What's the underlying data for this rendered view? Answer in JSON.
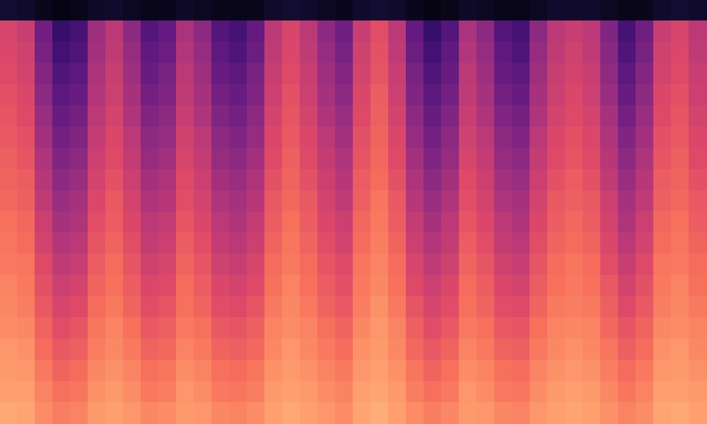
{
  "chart_data": {
    "type": "heatmap",
    "color": "magma",
    "zlim": [
      0,
      100
    ],
    "tick_labels": false,
    "cells": [
      [
        9,
        8,
        5,
        3,
        4,
        7,
        8,
        6,
        4,
        5,
        7,
        6,
        4,
        4,
        5,
        8,
        9,
        8,
        6,
        5,
        8,
        9,
        8,
        5,
        3,
        4,
        7,
        6,
        4,
        4,
        6,
        8,
        8,
        8,
        6,
        4,
        5,
        8,
        9,
        8
      ],
      [
        58,
        54,
        33,
        19,
        23,
        44,
        51,
        40,
        26,
        30,
        47,
        40,
        26,
        23,
        30,
        51,
        58,
        51,
        40,
        33,
        54,
        61,
        51,
        30,
        19,
        26,
        47,
        40,
        26,
        23,
        40,
        51,
        54,
        51,
        37,
        23,
        33,
        54,
        58,
        51
      ],
      [
        59,
        56,
        35,
        22,
        25,
        45,
        52,
        42,
        29,
        32,
        49,
        42,
        29,
        25,
        32,
        52,
        59,
        52,
        42,
        35,
        56,
        62,
        52,
        32,
        22,
        29,
        49,
        42,
        29,
        25,
        42,
        52,
        56,
        52,
        39,
        25,
        35,
        56,
        59,
        52
      ],
      [
        60,
        57,
        38,
        25,
        28,
        47,
        54,
        44,
        31,
        35,
        51,
        44,
        31,
        28,
        35,
        54,
        60,
        54,
        44,
        38,
        57,
        63,
        54,
        35,
        25,
        31,
        51,
        44,
        31,
        28,
        44,
        54,
        57,
        54,
        41,
        28,
        38,
        57,
        60,
        54
      ],
      [
        62,
        59,
        40,
        28,
        31,
        49,
        55,
        46,
        34,
        37,
        52,
        46,
        34,
        31,
        37,
        55,
        62,
        55,
        46,
        40,
        59,
        65,
        55,
        37,
        28,
        34,
        52,
        46,
        34,
        31,
        46,
        55,
        59,
        55,
        43,
        31,
        40,
        59,
        62,
        55
      ],
      [
        63,
        60,
        43,
        31,
        34,
        51,
        57,
        48,
        37,
        40,
        54,
        48,
        37,
        34,
        40,
        57,
        63,
        57,
        48,
        43,
        60,
        66,
        57,
        40,
        31,
        37,
        54,
        48,
        37,
        34,
        48,
        57,
        60,
        57,
        46,
        34,
        43,
        60,
        63,
        57
      ],
      [
        64,
        62,
        45,
        34,
        37,
        53,
        59,
        51,
        40,
        42,
        56,
        51,
        40,
        37,
        42,
        59,
        64,
        59,
        51,
        45,
        62,
        67,
        59,
        42,
        34,
        40,
        56,
        51,
        40,
        37,
        51,
        59,
        62,
        59,
        48,
        37,
        45,
        62,
        64,
        59
      ],
      [
        66,
        63,
        48,
        37,
        40,
        55,
        60,
        53,
        42,
        45,
        58,
        53,
        42,
        40,
        45,
        60,
        66,
        60,
        53,
        48,
        63,
        68,
        60,
        45,
        37,
        42,
        58,
        53,
        42,
        40,
        53,
        60,
        63,
        60,
        50,
        40,
        48,
        63,
        66,
        60
      ],
      [
        67,
        65,
        50,
        40,
        43,
        57,
        62,
        55,
        45,
        48,
        60,
        55,
        45,
        43,
        48,
        62,
        67,
        62,
        55,
        50,
        65,
        69,
        62,
        48,
        40,
        45,
        60,
        55,
        45,
        43,
        55,
        62,
        65,
        62,
        52,
        43,
        50,
        65,
        67,
        62
      ],
      [
        68,
        66,
        52,
        43,
        46,
        59,
        64,
        57,
        48,
        50,
        61,
        57,
        48,
        46,
        50,
        64,
        68,
        64,
        57,
        52,
        66,
        71,
        64,
        50,
        43,
        48,
        61,
        57,
        48,
        46,
        57,
        64,
        66,
        64,
        55,
        46,
        52,
        66,
        68,
        64
      ],
      [
        70,
        68,
        55,
        46,
        48,
        61,
        65,
        59,
        51,
        53,
        63,
        59,
        51,
        48,
        53,
        65,
        70,
        65,
        59,
        55,
        68,
        72,
        65,
        53,
        46,
        51,
        63,
        59,
        51,
        48,
        59,
        65,
        68,
        65,
        57,
        48,
        55,
        68,
        70,
        65
      ],
      [
        71,
        69,
        57,
        49,
        51,
        63,
        67,
        61,
        53,
        55,
        65,
        61,
        53,
        51,
        55,
        67,
        71,
        67,
        61,
        57,
        69,
        73,
        67,
        55,
        49,
        53,
        65,
        61,
        53,
        51,
        61,
        67,
        69,
        67,
        59,
        51,
        57,
        69,
        71,
        67
      ],
      [
        72,
        71,
        60,
        52,
        54,
        65,
        69,
        63,
        56,
        58,
        67,
        63,
        56,
        54,
        58,
        69,
        72,
        69,
        63,
        60,
        71,
        74,
        69,
        58,
        52,
        56,
        67,
        63,
        56,
        54,
        63,
        69,
        71,
        69,
        61,
        54,
        60,
        71,
        72,
        69
      ],
      [
        74,
        72,
        62,
        55,
        57,
        67,
        70,
        65,
        59,
        60,
        69,
        65,
        59,
        57,
        60,
        70,
        74,
        70,
        65,
        62,
        72,
        75,
        70,
        60,
        55,
        59,
        69,
        65,
        59,
        57,
        65,
        70,
        72,
        70,
        64,
        57,
        62,
        72,
        74,
        70
      ],
      [
        75,
        73,
        64,
        58,
        60,
        69,
        72,
        67,
        61,
        63,
        70,
        67,
        61,
        60,
        63,
        72,
        75,
        72,
        67,
        64,
        73,
        77,
        72,
        63,
        58,
        61,
        70,
        67,
        61,
        60,
        67,
        72,
        73,
        72,
        66,
        60,
        64,
        73,
        75,
        72
      ],
      [
        76,
        75,
        67,
        61,
        63,
        71,
        74,
        70,
        64,
        66,
        72,
        70,
        64,
        63,
        66,
        74,
        76,
        74,
        70,
        67,
        75,
        78,
        74,
        66,
        61,
        64,
        72,
        70,
        64,
        63,
        70,
        74,
        75,
        74,
        68,
        63,
        67,
        75,
        76,
        74
      ],
      [
        78,
        77,
        69,
        64,
        66,
        73,
        75,
        72,
        67,
        68,
        74,
        72,
        67,
        66,
        68,
        75,
        78,
        75,
        72,
        69,
        77,
        79,
        75,
        68,
        64,
        67,
        74,
        72,
        67,
        66,
        72,
        75,
        77,
        75,
        71,
        66,
        69,
        77,
        78,
        75
      ],
      [
        79,
        78,
        72,
        67,
        69,
        75,
        77,
        74,
        70,
        71,
        76,
        74,
        70,
        69,
        71,
        77,
        79,
        77,
        74,
        72,
        78,
        80,
        77,
        71,
        67,
        70,
        76,
        74,
        70,
        69,
        74,
        77,
        78,
        77,
        73,
        69,
        72,
        78,
        79,
        77
      ],
      [
        80,
        80,
        74,
        70,
        71,
        77,
        79,
        76,
        72,
        73,
        78,
        76,
        72,
        71,
        73,
        79,
        80,
        79,
        76,
        74,
        80,
        81,
        79,
        73,
        70,
        72,
        78,
        76,
        72,
        71,
        76,
        79,
        80,
        79,
        75,
        71,
        74,
        80,
        80,
        79
      ],
      [
        82,
        81,
        76,
        73,
        74,
        79,
        80,
        78,
        75,
        76,
        79,
        78,
        75,
        74,
        76,
        80,
        82,
        80,
        78,
        76,
        81,
        83,
        80,
        76,
        73,
        75,
        79,
        78,
        75,
        74,
        78,
        80,
        81,
        80,
        77,
        74,
        76,
        81,
        82,
        80
      ]
    ]
  }
}
